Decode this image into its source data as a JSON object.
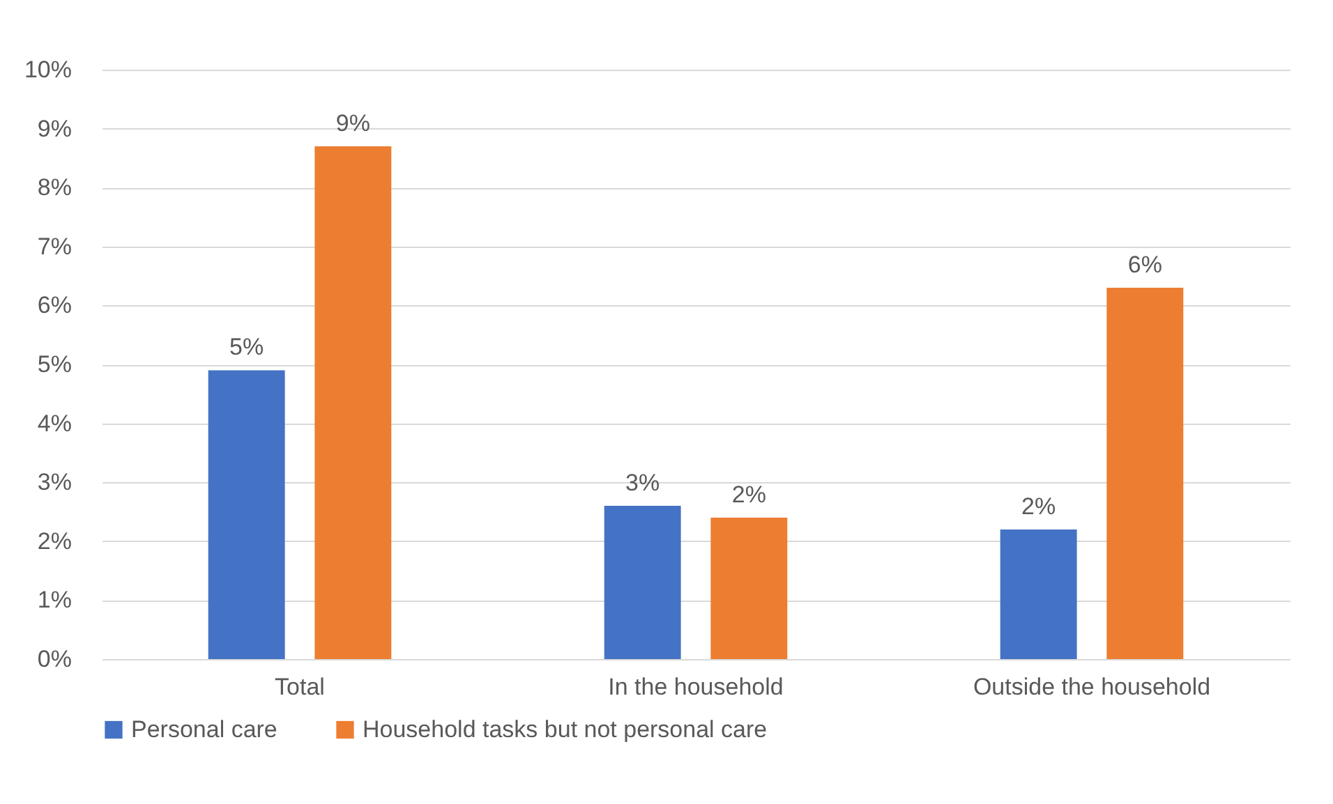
{
  "chart_data": {
    "type": "bar",
    "categories": [
      "Total",
      "In the household",
      "Outside the household"
    ],
    "series": [
      {
        "name": "Personal care",
        "color": "#4472c4",
        "values": [
          4.9,
          2.6,
          2.2
        ],
        "value_labels": [
          "5%",
          "3%",
          "2%"
        ]
      },
      {
        "name": "Household tasks but not personal care",
        "color": "#ed7d31",
        "values": [
          8.7,
          2.4,
          6.3
        ],
        "value_labels": [
          "9%",
          "2%",
          "6%"
        ]
      }
    ],
    "ylim": [
      0,
      10
    ],
    "yticks": [
      {
        "value": 0,
        "label": "0%"
      },
      {
        "value": 1,
        "label": "1%"
      },
      {
        "value": 2,
        "label": "2%"
      },
      {
        "value": 3,
        "label": "3%"
      },
      {
        "value": 4,
        "label": "4%"
      },
      {
        "value": 5,
        "label": "5%"
      },
      {
        "value": 6,
        "label": "6%"
      },
      {
        "value": 7,
        "label": "7%"
      },
      {
        "value": 8,
        "label": "8%"
      },
      {
        "value": 9,
        "label": "9%"
      },
      {
        "value": 10,
        "label": "10%"
      }
    ],
    "grid": "y",
    "legend": "bottom"
  }
}
